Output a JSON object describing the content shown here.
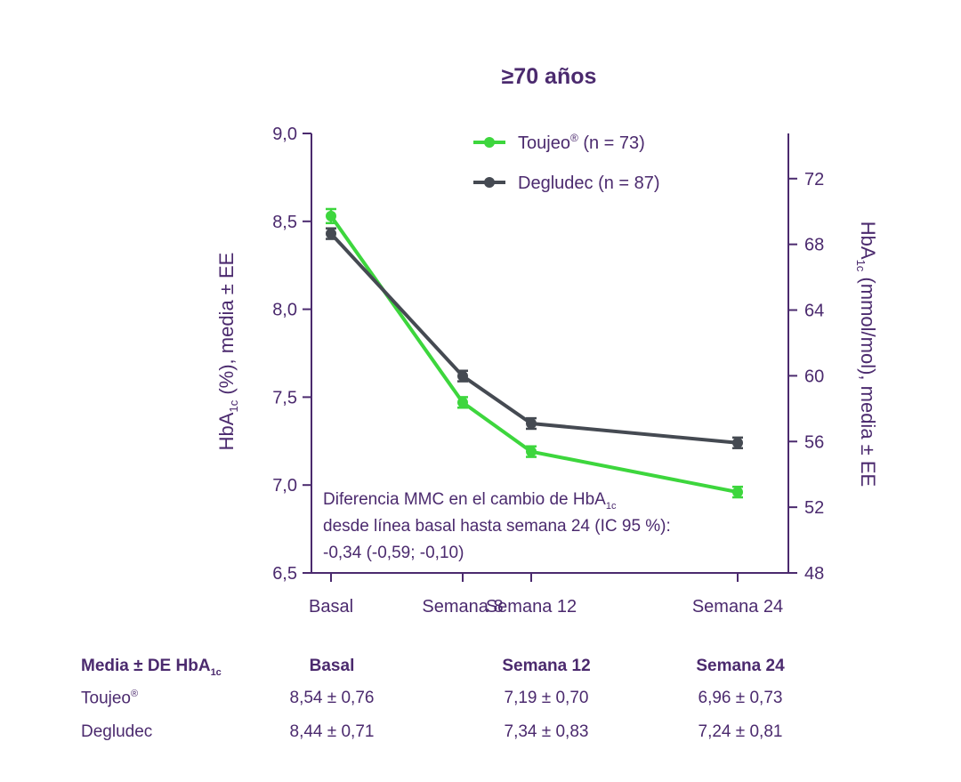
{
  "chart_data": {
    "type": "line",
    "title": "≥70 años",
    "categories": [
      "Basal",
      "Semana 8",
      "Semana 12",
      "Semana 24"
    ],
    "x": [
      0,
      8,
      12,
      24
    ],
    "ylabel_left": {
      "main": "HbA",
      "sub": "1c",
      "rest": " (%), media ± EE"
    },
    "ylabel_right": {
      "main": "HbA",
      "sub": "1c",
      "rest": " (mmol/mol), media ± EE"
    },
    "ylim": [
      6.5,
      9.0
    ],
    "yticks_left": [
      "6,5",
      "7,0",
      "7,5",
      "8,0",
      "8,5",
      "9,0"
    ],
    "ylim_right": [
      48,
      74.75
    ],
    "yticks_right": [
      "48",
      "52",
      "56",
      "60",
      "64",
      "68",
      "72"
    ],
    "series": [
      {
        "name": "Toujeo",
        "name_sup": "®",
        "name_rest": " (n = 73)",
        "color": "#3dd63d",
        "values": [
          8.53,
          7.47,
          7.19,
          6.96
        ],
        "errors": [
          0.04,
          0.03,
          0.03,
          0.03
        ]
      },
      {
        "name": "Degludec",
        "name_sup": "",
        "name_rest": " (n = 87)",
        "color": "#454a52",
        "values": [
          8.43,
          7.62,
          7.35,
          7.24
        ],
        "errors": [
          0.03,
          0.03,
          0.03,
          0.03
        ]
      }
    ],
    "legend_position": "top-right",
    "annotation": {
      "line1_main": "Diferencia MMC en el cambio de HbA",
      "line1_sub": "1c",
      "line2": "desde línea basal hasta semana 24 (IC 95 %):",
      "line3": "-0,34 (-0,59; -0,10)"
    },
    "grid": false
  },
  "table": {
    "header_main": "Media ± DE HbA",
    "header_sub": "1c",
    "columns": [
      "Basal",
      "Semana 12",
      "Semana 24"
    ],
    "rows": [
      {
        "label": "Toujeo",
        "label_sup": "®",
        "values": [
          "8,54 ± 0,76",
          "7,19 ± 0,70",
          "6,96 ± 0,73"
        ]
      },
      {
        "label": "Degludec",
        "label_sup": "",
        "values": [
          "8,44 ± 0,71",
          "7,34 ± 0,83",
          "7,24 ± 0,81"
        ]
      }
    ]
  },
  "colors": {
    "text": "#4b2a6e",
    "toujeo": "#3dd63d",
    "degludec": "#454a52"
  }
}
